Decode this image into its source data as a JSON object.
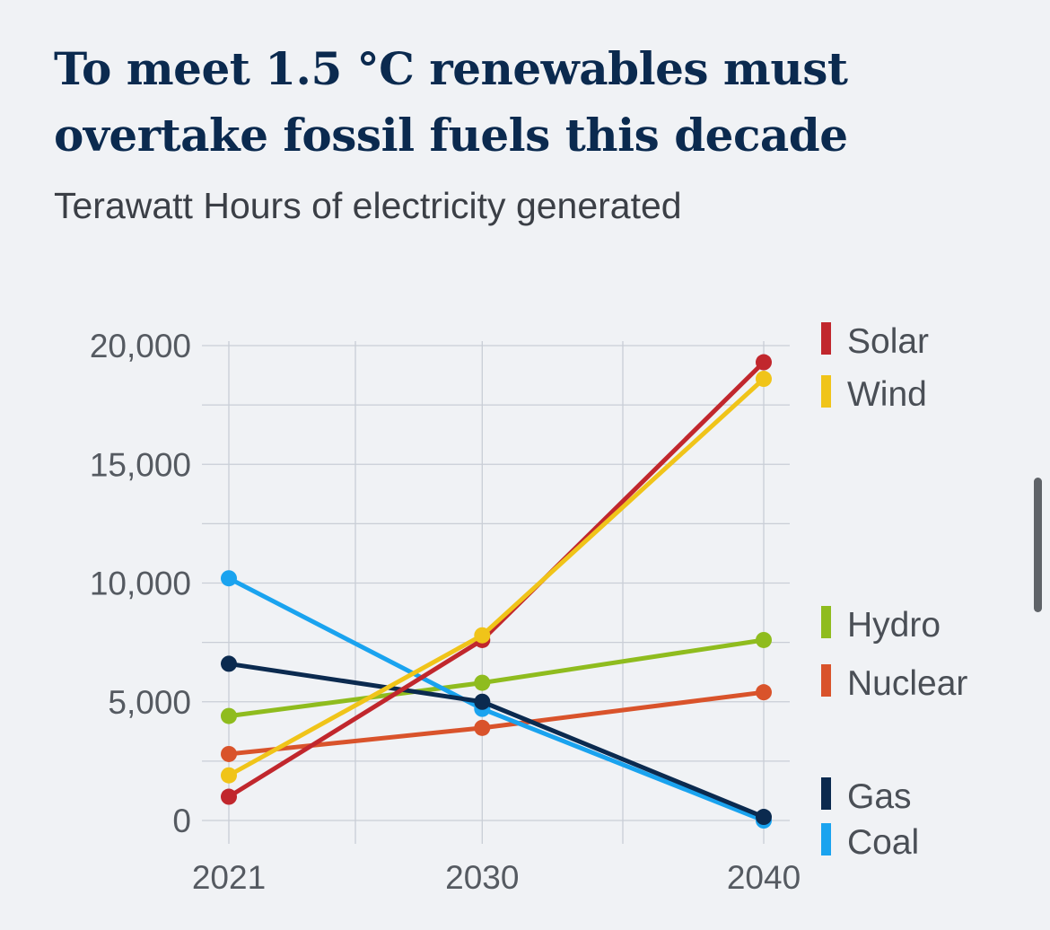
{
  "chart_data": {
    "type": "line",
    "title": "To meet 1.5 °C renewables must overtake fossil fuels this decade",
    "subtitle": "Terawatt Hours of electricity generated",
    "x": [
      2021,
      2030,
      2040
    ],
    "x_tick_labels": [
      "2021",
      "2030",
      "2040"
    ],
    "y_tick_labels": [
      "20,000",
      "15,000",
      "10,000",
      "5,000",
      "0"
    ],
    "y_ticks": [
      20000,
      15000,
      10000,
      5000,
      0
    ],
    "ylim": [
      0,
      20000
    ],
    "grid": true,
    "legend_position": "right, labels placed at series end values",
    "series": [
      {
        "name": "Solar",
        "color": "#c1272d",
        "values": [
          1000,
          7600,
          19300
        ]
      },
      {
        "name": "Wind",
        "color": "#f0c419",
        "values": [
          1900,
          7800,
          18600
        ]
      },
      {
        "name": "Hydro",
        "color": "#8fbc1e",
        "values": [
          4400,
          5800,
          7600
        ]
      },
      {
        "name": "Nuclear",
        "color": "#d9532b",
        "values": [
          2800,
          3900,
          5400
        ]
      },
      {
        "name": "Gas",
        "color": "#0b2a4f",
        "values": [
          6600,
          5000,
          150
        ]
      },
      {
        "name": "Coal",
        "color": "#1aa3ef",
        "values": [
          10200,
          4700,
          0
        ]
      }
    ]
  }
}
